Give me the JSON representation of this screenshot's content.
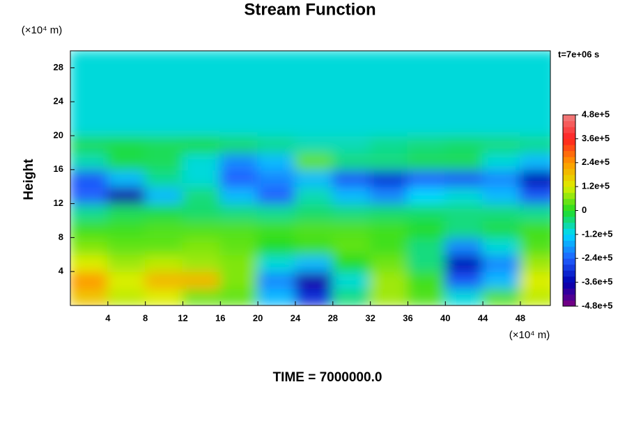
{
  "chart_data": {
    "type": "contour",
    "title": "Stream Function",
    "ylabel": "Height",
    "y_unit": "(×10⁴ m)",
    "x_unit": "(×10⁴ m)",
    "annotation": "t=7e+06 s",
    "footer": "TIME = 7000000.0",
    "xlim": [
      0,
      51.2
    ],
    "ylim": [
      0,
      30
    ],
    "xticks": [
      4,
      8,
      12,
      16,
      20,
      24,
      28,
      32,
      36,
      40,
      44,
      48
    ],
    "yticks": [
      4,
      8,
      12,
      16,
      20,
      24,
      28
    ],
    "x": [
      2,
      6,
      10,
      14,
      18,
      22,
      26,
      30,
      34,
      38,
      42,
      46,
      50
    ],
    "y": [
      1,
      3,
      5,
      7,
      9,
      11,
      13,
      15,
      17,
      19,
      21,
      23,
      25,
      27,
      29
    ],
    "z": [
      [
        180000,
        100000,
        120000,
        50000,
        40000,
        -150000,
        -300000,
        -50000,
        80000,
        30000,
        -100000,
        30000,
        100000
      ],
      [
        240000,
        120000,
        200000,
        200000,
        60000,
        -200000,
        -380000,
        -100000,
        80000,
        20000,
        -250000,
        -150000,
        120000
      ],
      [
        120000,
        80000,
        100000,
        80000,
        60000,
        -100000,
        -150000,
        0,
        50000,
        -50000,
        -350000,
        -200000,
        80000
      ],
      [
        60000,
        40000,
        40000,
        60000,
        40000,
        0,
        20000,
        40000,
        20000,
        -50000,
        -200000,
        -100000,
        30000
      ],
      [
        20000,
        20000,
        30000,
        30000,
        30000,
        20000,
        30000,
        30000,
        20000,
        0,
        -50000,
        -20000,
        20000
      ],
      [
        -60000,
        -30000,
        -20000,
        -40000,
        -50000,
        -60000,
        -40000,
        -50000,
        -40000,
        -40000,
        -50000,
        -50000,
        -60000
      ],
      [
        -240000,
        -380000,
        -150000,
        -50000,
        -150000,
        -240000,
        -80000,
        -150000,
        -200000,
        -120000,
        -100000,
        -150000,
        -250000
      ],
      [
        -250000,
        -150000,
        -60000,
        -100000,
        -240000,
        -200000,
        -150000,
        -250000,
        -300000,
        -240000,
        -250000,
        -200000,
        -350000
      ],
      [
        -80000,
        -20000,
        -30000,
        -100000,
        -200000,
        -150000,
        40000,
        -50000,
        -50000,
        -30000,
        -30000,
        -100000,
        -150000
      ],
      [
        -30000,
        -20000,
        -30000,
        -20000,
        -40000,
        -60000,
        -80000,
        -80000,
        -60000,
        -50000,
        -40000,
        -50000,
        -60000
      ],
      [
        -100000,
        -100000,
        -100000,
        -100000,
        -100000,
        -100000,
        -100000,
        -100000,
        -100000,
        -100000,
        -100000,
        -100000,
        -100000
      ],
      [
        -100000,
        -100000,
        -100000,
        -100000,
        -100000,
        -100000,
        -100000,
        -100000,
        -100000,
        -100000,
        -100000,
        -100000,
        -100000
      ],
      [
        -100000,
        -100000,
        -100000,
        -100000,
        -100000,
        -100000,
        -100000,
        -100000,
        -100000,
        -100000,
        -100000,
        -100000,
        -100000
      ],
      [
        -100000,
        -100000,
        -100000,
        -100000,
        -100000,
        -100000,
        -100000,
        -100000,
        -100000,
        -100000,
        -100000,
        -100000,
        -100000
      ],
      [
        -100000,
        -100000,
        -100000,
        -100000,
        -100000,
        -100000,
        -100000,
        -100000,
        -100000,
        -100000,
        -100000,
        -100000,
        -100000
      ]
    ],
    "colorbar_ticks": [
      {
        "value": 480000,
        "label": "4.8e+5"
      },
      {
        "value": 360000,
        "label": "3.6e+5"
      },
      {
        "value": 240000,
        "label": "2.4e+5"
      },
      {
        "value": 120000,
        "label": "1.2e+5"
      },
      0,
      {
        "value": -120000,
        "label": "-1.2e+5"
      },
      {
        "value": -240000,
        "label": "-2.4e+5"
      },
      {
        "value": -360000,
        "label": "-3.6e+5"
      },
      {
        "value": -480000,
        "label": "-4.8e+5"
      }
    ],
    "colorbar_colors": [
      "#f08080",
      "#ff2020",
      "#ff9900",
      "#ddee00",
      "#22dd22",
      "#00d8ff",
      "#2060ff",
      "#0000b0",
      "#800080"
    ]
  }
}
